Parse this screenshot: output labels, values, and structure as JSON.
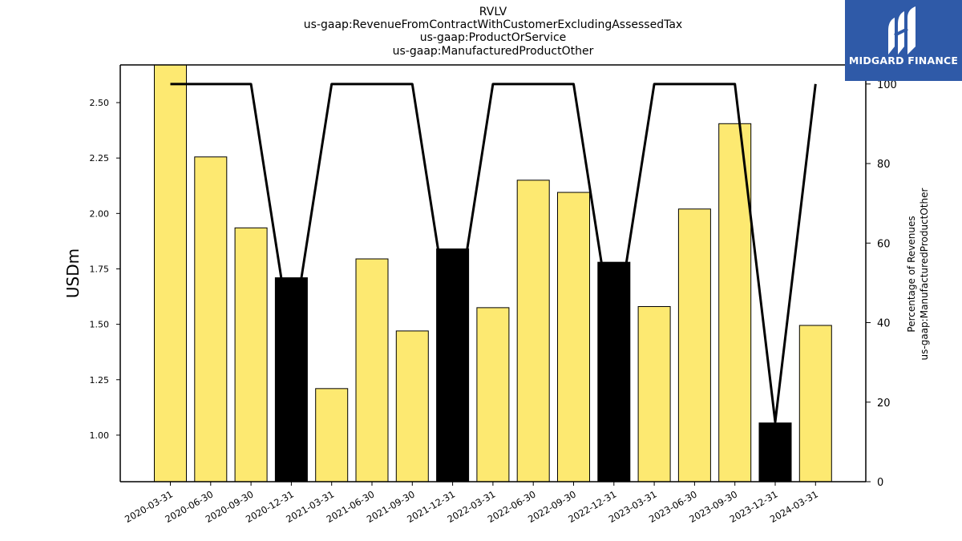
{
  "chart_data": {
    "type": "bar",
    "title": [
      "RVLV",
      "us-gaap:RevenueFromContractWithCustomerExcludingAssessedTax",
      "us-gaap:ProductOrService",
      "us-gaap:ManufacturedProductOther"
    ],
    "ylabel": "USDm",
    "y2label": [
      "Percentage of Revenues",
      "us-gaap:ManufacturedProductOther"
    ],
    "ylim": [
      0.79,
      2.67
    ],
    "y2lim": [
      0,
      104.8
    ],
    "yticks": [
      "1.00",
      "1.25",
      "1.50",
      "1.75",
      "2.00",
      "2.25",
      "2.50"
    ],
    "y2ticks": [
      "0",
      "20",
      "40",
      "60",
      "80",
      "100"
    ],
    "categories": [
      "2020-03-31",
      "2020-06-30",
      "2020-09-30",
      "2020-12-31",
      "2021-03-31",
      "2021-06-30",
      "2021-09-30",
      "2021-12-31",
      "2022-03-31",
      "2022-06-30",
      "2022-09-30",
      "2022-12-31",
      "2023-03-31",
      "2023-06-30",
      "2023-09-30",
      "2023-12-31",
      "2024-03-31"
    ],
    "values": [
      2.67,
      2.255,
      1.935,
      1.71,
      1.21,
      1.795,
      1.47,
      1.84,
      1.575,
      2.15,
      2.095,
      1.78,
      1.58,
      2.02,
      2.405,
      1.055,
      1.495
    ],
    "bar_colors": [
      "#fde971",
      "#fde971",
      "#fde971",
      "#000000",
      "#fde971",
      "#fde971",
      "#fde971",
      "#000000",
      "#fde971",
      "#fde971",
      "#fde971",
      "#000000",
      "#fde971",
      "#fde971",
      "#fde971",
      "#000000",
      "#fde971"
    ],
    "line_series": {
      "values": [
        100,
        100,
        100,
        35,
        100,
        100,
        100,
        35,
        100,
        100,
        100,
        35,
        100,
        100,
        100,
        15,
        100
      ],
      "color": "#000000"
    },
    "grid": false
  },
  "logo": {
    "text": "MIDGARD FINANCE",
    "bg": "#2f5aa8"
  }
}
